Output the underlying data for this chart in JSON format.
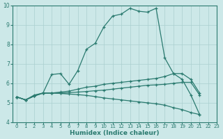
{
  "line1_x": [
    0,
    1,
    2,
    3,
    4,
    5,
    6,
    7,
    8,
    9,
    10,
    11,
    12,
    13,
    14,
    15,
    16,
    17,
    18,
    19,
    20,
    21
  ],
  "line1_y": [
    5.3,
    5.15,
    5.35,
    5.5,
    6.45,
    6.5,
    5.95,
    6.65,
    7.75,
    8.05,
    8.9,
    9.45,
    9.55,
    9.85,
    9.7,
    9.65,
    9.85,
    7.3,
    6.5,
    6.2,
    5.4,
    4.4
  ],
  "line2_x": [
    0,
    1,
    2,
    3,
    4,
    5,
    6,
    7,
    8,
    9,
    10,
    11,
    12,
    13,
    14,
    15,
    16,
    17,
    18,
    19,
    20,
    21
  ],
  "line2_y": [
    5.3,
    5.15,
    5.4,
    5.5,
    5.5,
    5.55,
    5.6,
    5.7,
    5.8,
    5.85,
    5.95,
    6.0,
    6.05,
    6.1,
    6.15,
    6.2,
    6.25,
    6.35,
    6.5,
    6.5,
    6.2,
    5.5
  ],
  "line3_x": [
    0,
    1,
    2,
    3,
    4,
    5,
    6,
    7,
    8,
    9,
    10,
    11,
    12,
    13,
    14,
    15,
    16,
    17,
    18,
    19,
    20,
    21
  ],
  "line3_y": [
    5.3,
    5.15,
    5.35,
    5.5,
    5.5,
    5.5,
    5.52,
    5.55,
    5.58,
    5.62,
    5.65,
    5.7,
    5.75,
    5.8,
    5.85,
    5.9,
    5.92,
    5.95,
    6.0,
    6.05,
    6.05,
    5.4
  ],
  "line4_x": [
    0,
    1,
    2,
    3,
    4,
    5,
    6,
    7,
    8,
    9,
    10,
    11,
    12,
    13,
    14,
    15,
    16,
    17,
    18,
    19,
    20,
    21
  ],
  "line4_y": [
    5.3,
    5.15,
    5.35,
    5.5,
    5.5,
    5.48,
    5.45,
    5.42,
    5.38,
    5.32,
    5.25,
    5.2,
    5.15,
    5.1,
    5.05,
    5.0,
    4.95,
    4.88,
    4.75,
    4.65,
    4.5,
    4.4
  ],
  "color": "#2a7a6f",
  "bg_color": "#cce8e8",
  "grid_color": "#aacfcf",
  "xlabel": "Humidex (Indice chaleur)",
  "ylim": [
    4,
    10
  ],
  "xlim": [
    -0.5,
    23
  ],
  "yticks": [
    4,
    5,
    6,
    7,
    8,
    9,
    10
  ],
  "xticks": [
    0,
    1,
    2,
    3,
    4,
    5,
    6,
    7,
    8,
    9,
    10,
    11,
    12,
    13,
    14,
    15,
    16,
    17,
    18,
    19,
    20,
    21,
    22,
    23
  ],
  "marker": "+"
}
